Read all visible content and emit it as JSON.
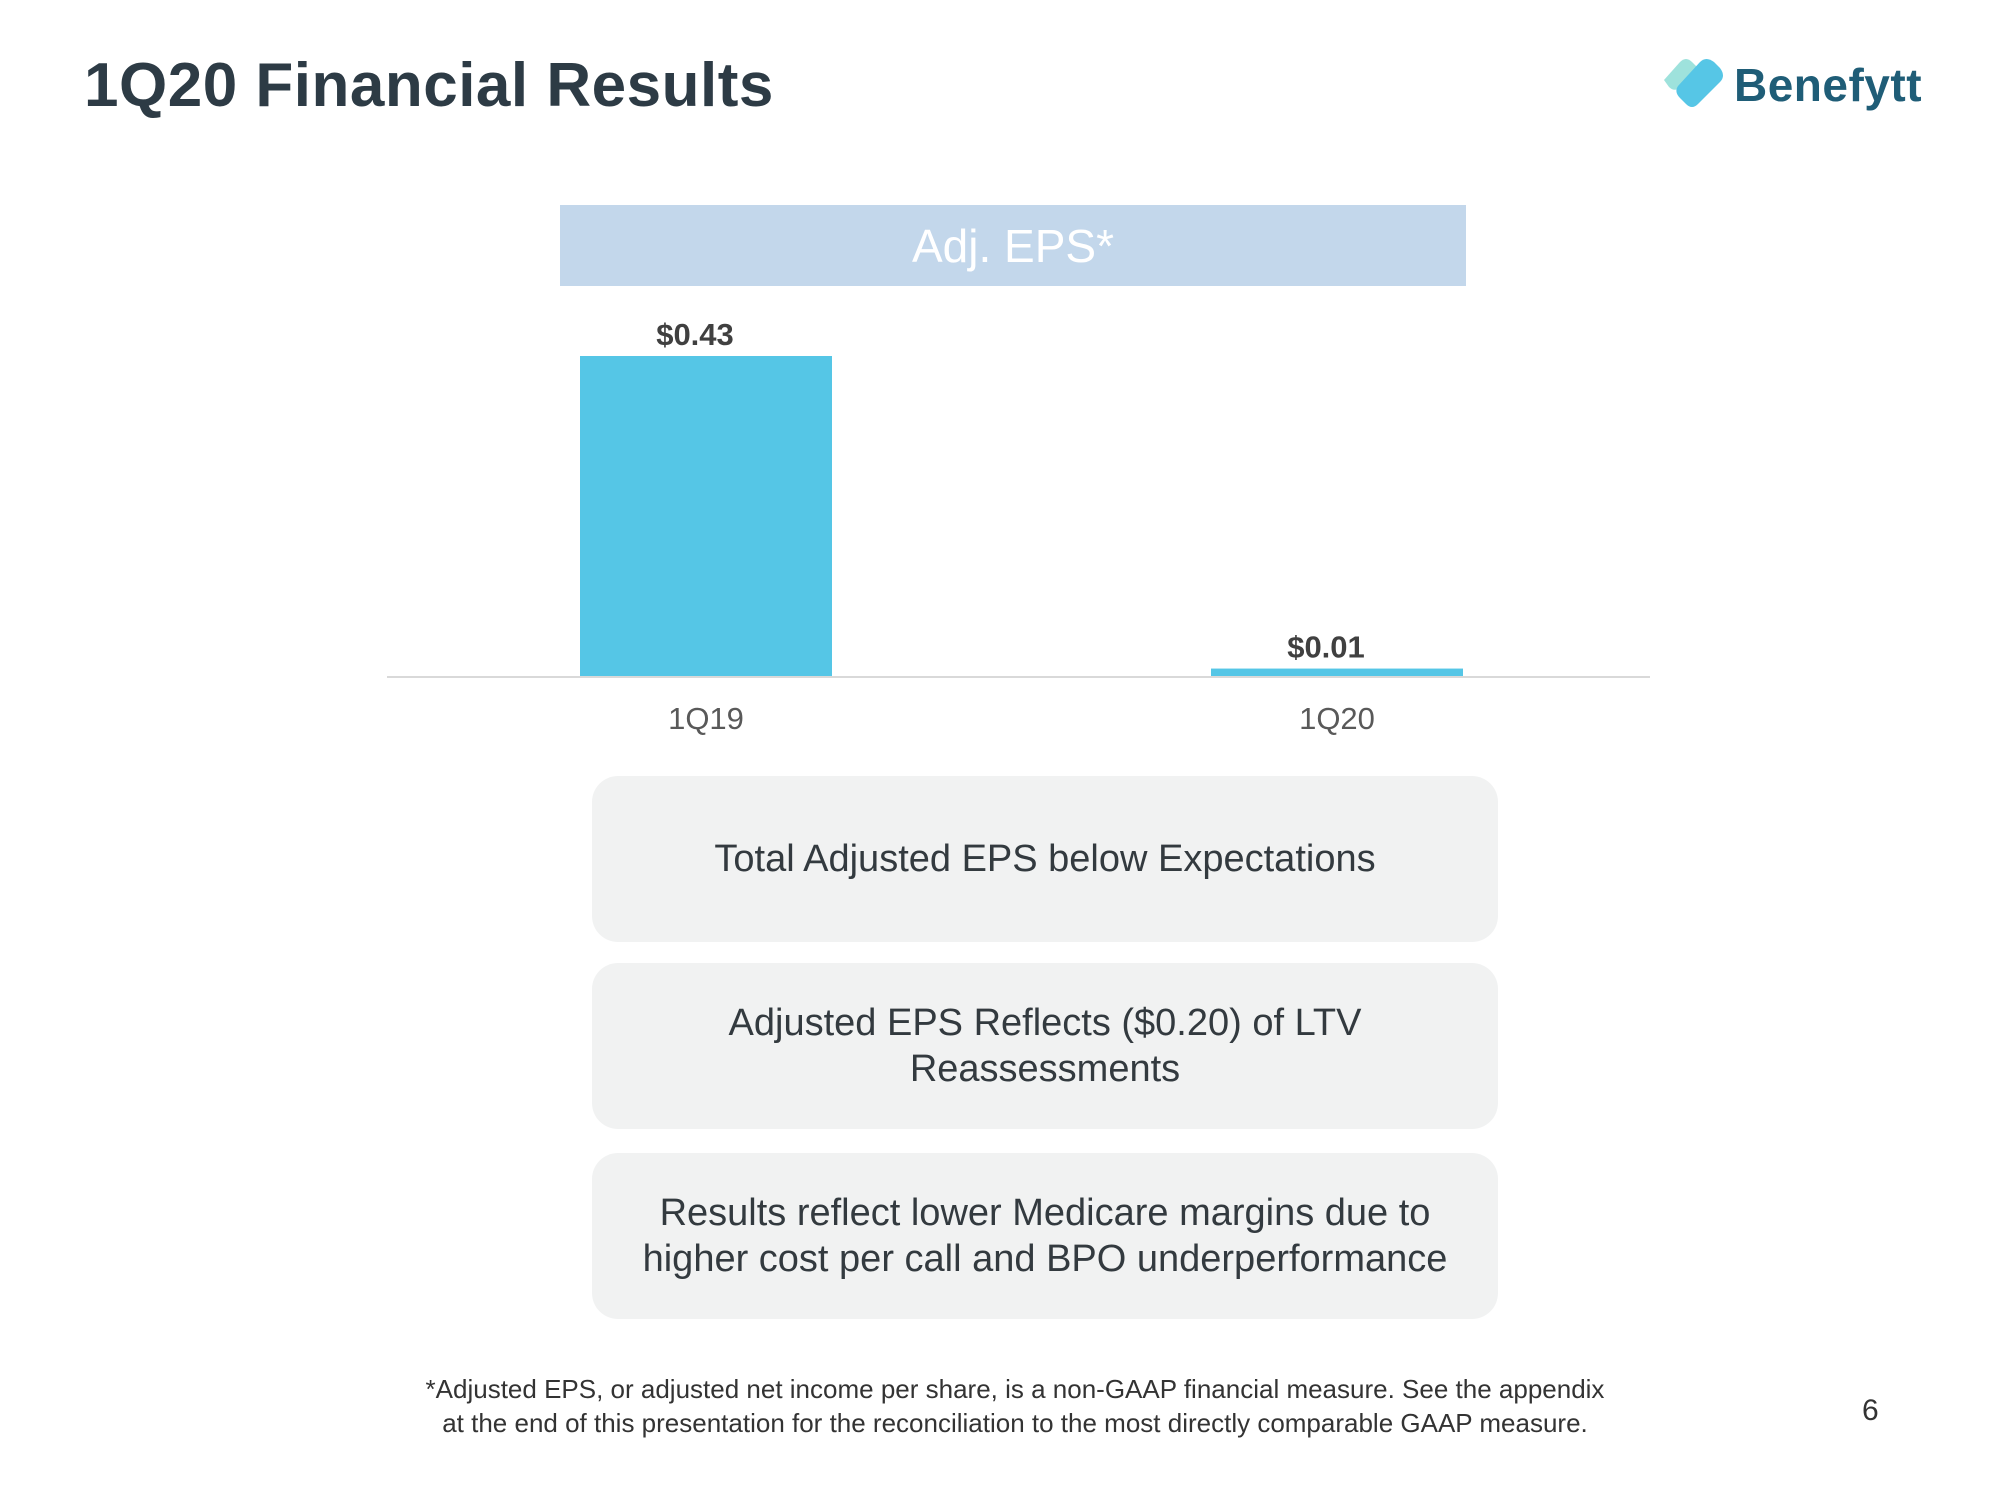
{
  "slide": {
    "title": "1Q20 Financial Results",
    "page_number": "6"
  },
  "logo": {
    "text": "Benefytt",
    "text_color": "#1f5d77",
    "mark_colors": [
      "#9ee2dc",
      "#56c6e6"
    ]
  },
  "chart_data": {
    "type": "bar",
    "title": "Adj. EPS*",
    "categories": [
      "1Q19",
      "1Q20"
    ],
    "values": [
      0.43,
      0.01
    ],
    "data_labels": [
      "$0.43",
      "$0.01"
    ],
    "xlabel": "",
    "ylabel": "",
    "ylim": [
      0,
      0.43
    ],
    "grid": false,
    "legend": "none",
    "bar_color": "#55c6e6",
    "title_bg_color": "#c3d7eb"
  },
  "cards": [
    {
      "text": "Total Adjusted EPS below Expectations"
    },
    {
      "text": "Adjusted EPS Reflects ($0.20) of LTV Reassessments"
    },
    {
      "text": "Results reflect lower Medicare margins due to higher cost per call and BPO underperformance"
    }
  ],
  "footnote": {
    "line1": "*Adjusted EPS, or adjusted net income per share, is a non-GAAP financial measure. See the appendix",
    "line2": "at the end of this presentation for the reconciliation to the most directly comparable GAAP measure."
  }
}
